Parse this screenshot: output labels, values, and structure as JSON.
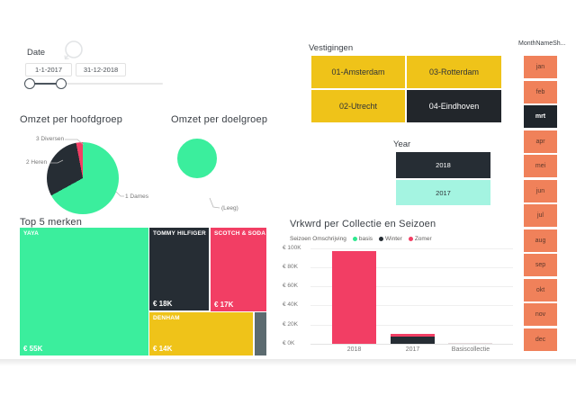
{
  "colors": {
    "green": "#3bee9d",
    "dark": "#262d34",
    "pink": "#f23e64",
    "yellow": "#efc319",
    "orange": "#f0815a",
    "cyan": "#a4f4e1",
    "sliver_gray": "#5c6b70"
  },
  "date_slicer": {
    "title": "Date",
    "start_value": "1-1-2017",
    "end_value": "31-12-2018"
  },
  "vestigingen": {
    "title": "Vestigingen",
    "buttons": [
      {
        "label": "01-Amsterdam",
        "selected": false
      },
      {
        "label": "03-Rotterdam",
        "selected": false
      },
      {
        "label": "02-Utrecht",
        "selected": false
      },
      {
        "label": "04-Eindhoven",
        "selected": true
      }
    ]
  },
  "year_slicer": {
    "title": "Year",
    "options": [
      {
        "label": "2018",
        "selected": true
      },
      {
        "label": "2017",
        "selected": false
      }
    ]
  },
  "month_slicer": {
    "header": "MonthNameSh...",
    "selected": "mrt",
    "items": [
      "jan",
      "feb",
      "mrt",
      "apr",
      "mei",
      "jun",
      "jul",
      "aug",
      "sep",
      "okt",
      "nov",
      "dec"
    ]
  },
  "chart_data": [
    {
      "type": "pie",
      "title": "Omzet per hoofdgroep",
      "labels": [
        "1 Dames",
        "2 Heren",
        "3 Diversen"
      ],
      "values": [
        67,
        30,
        3
      ],
      "colors": [
        "#3bee9d",
        "#262d34",
        "#f23e64"
      ],
      "unit": "percent-of-omzet"
    },
    {
      "type": "pie",
      "subtype": "donut",
      "title": "Omzet per doelgroep",
      "labels": [
        "(Leeg)"
      ],
      "values": [
        100
      ],
      "colors": [
        "#3bee9d"
      ]
    },
    {
      "type": "treemap",
      "title": "Top 5 merken",
      "items": [
        {
          "name": "YAYA",
          "display_value": "€ 55K",
          "value": 55,
          "color": "#3bee9d"
        },
        {
          "name": "TOMMY HILFIGER",
          "display_value": "€ 18K",
          "value": 18,
          "color": "#262d34"
        },
        {
          "name": "SCOTCH & SODA",
          "display_value": "€ 17K",
          "value": 17,
          "color": "#f23e64"
        },
        {
          "name": "DENHAM",
          "display_value": "€ 14K",
          "value": 14,
          "color": "#efc319"
        },
        {
          "name": "",
          "display_value": "",
          "value": 3,
          "color": "#5c6b70"
        }
      ]
    },
    {
      "type": "bar",
      "subtype": "stacked-column",
      "title": "Vrkwrd per Collectie en Seizoen",
      "legend_title": "Seizoen Omschrijving",
      "categories": [
        "2018",
        "2017",
        "Basiscollectie"
      ],
      "series": [
        {
          "name": "basis",
          "color": "#2ee88f",
          "bar_color": "#e4d9db",
          "values": [
            0,
            0,
            1
          ]
        },
        {
          "name": "Winter",
          "color": "#262d34",
          "values": [
            0,
            8,
            0
          ]
        },
        {
          "name": "Zomer",
          "color": "#f23e64",
          "values": [
            97,
            2,
            0
          ]
        }
      ],
      "ylabel": "",
      "ylim": [
        0,
        100
      ],
      "yticks": [
        "€ 0K",
        "€ 20K",
        "€ 40K",
        "€ 60K",
        "€ 80K",
        "€ 100K"
      ],
      "grid": true,
      "legend_position": "top"
    }
  ]
}
